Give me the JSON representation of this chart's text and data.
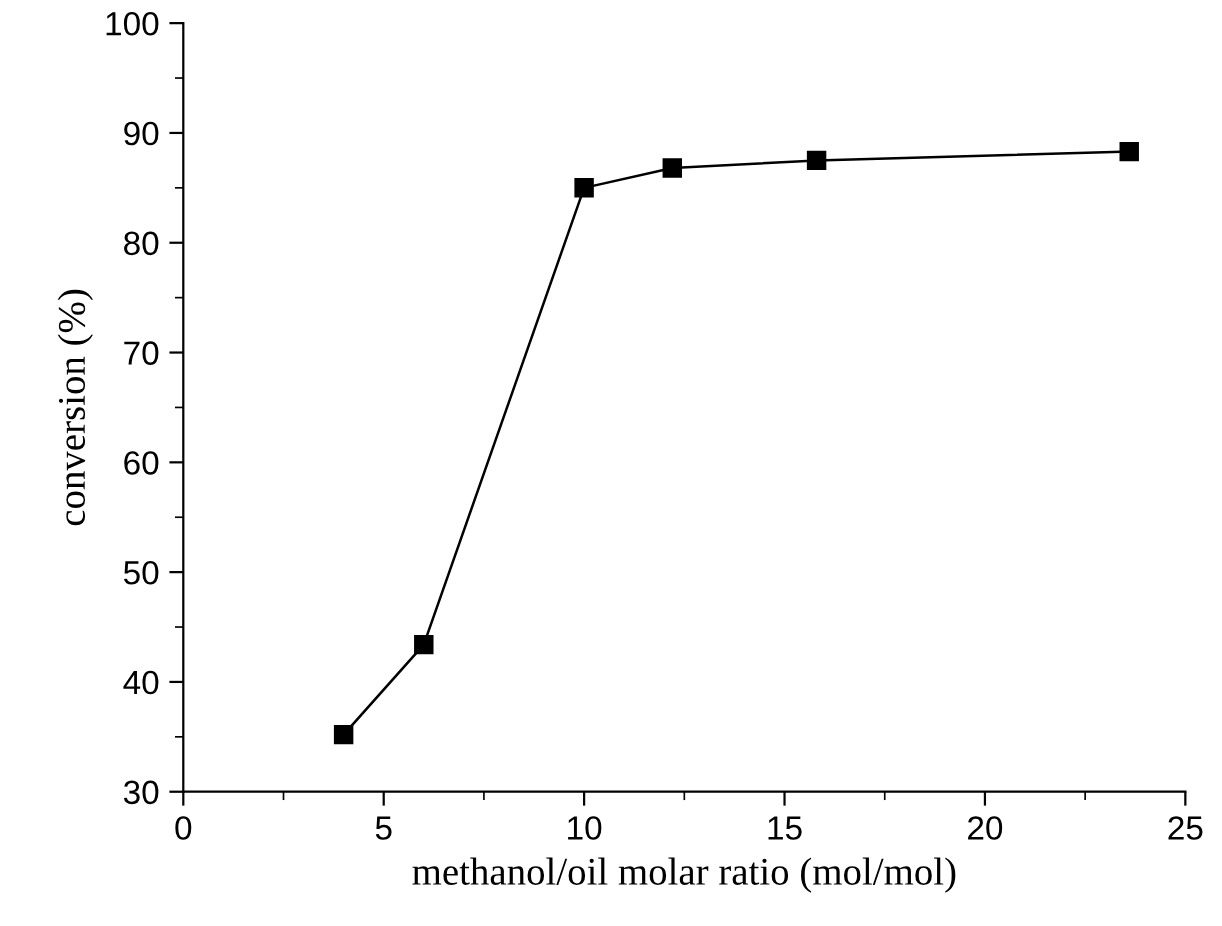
{
  "chart_data": {
    "type": "line",
    "xlabel": "methanol/oil molar ratio (mol/mol)",
    "ylabel": "conversion (%)",
    "x": [
      4.0,
      6.0,
      10.0,
      12.2,
      15.8,
      23.6
    ],
    "series": [
      {
        "color": "#000000",
        "values": [
          35.2,
          43.4,
          85.0,
          86.8,
          87.5,
          88.3
        ]
      }
    ],
    "xlim": [
      0,
      25
    ],
    "xticks": [
      0,
      5,
      10,
      15,
      20,
      25
    ],
    "ylim": [
      30,
      100
    ],
    "yticks": [
      30,
      40,
      50,
      60,
      70,
      80,
      90,
      100
    ],
    "marker": "square",
    "line_style": "solid",
    "grid": false,
    "legend": false
  }
}
